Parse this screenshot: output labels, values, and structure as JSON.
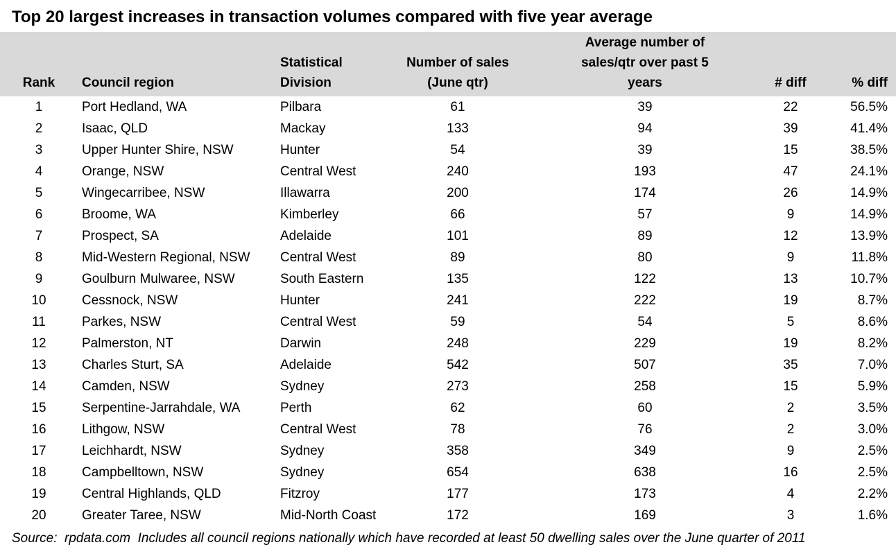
{
  "title": "Top 20 largest increases in transaction volumes compared with five year average",
  "colors": {
    "header_bg": "#d9d9d9",
    "text": "#000000",
    "background": "#ffffff"
  },
  "header": {
    "rank": "Rank",
    "council": "Council region",
    "statdiv_line1": "Statistical",
    "statdiv_line2": "Division",
    "sales_line1": "Number of sales",
    "sales_line2": "(June qtr)",
    "avg_line1": "Average number of",
    "avg_line2": "sales/qtr over past 5",
    "avg_line3": "years",
    "num_diff": "# diff",
    "pct_diff": "% diff"
  },
  "footer": {
    "source_note": "Source:  rpdata.com  Includes all council regions nationally which have recorded at least 50 dwelling sales over the June quarter of 2011"
  },
  "chart_data": {
    "type": "table",
    "title": "Top 20 largest increases in transaction volumes compared with five year average",
    "columns": [
      "Rank",
      "Council region",
      "Statistical Division",
      "Number of sales (June qtr)",
      "Average number of sales/qtr over past 5 years",
      "# diff",
      "% diff"
    ],
    "rows": [
      [
        "1",
        "Port Hedland, WA",
        "Pilbara",
        "61",
        "39",
        "22",
        "56.5%"
      ],
      [
        "2",
        "Isaac, QLD",
        "Mackay",
        "133",
        "94",
        "39",
        "41.4%"
      ],
      [
        "3",
        "Upper Hunter Shire, NSW",
        "Hunter",
        "54",
        "39",
        "15",
        "38.5%"
      ],
      [
        "4",
        "Orange, NSW",
        "Central West",
        "240",
        "193",
        "47",
        "24.1%"
      ],
      [
        "5",
        "Wingecarribee, NSW",
        "Illawarra",
        "200",
        "174",
        "26",
        "14.9%"
      ],
      [
        "6",
        "Broome, WA",
        "Kimberley",
        "66",
        "57",
        "9",
        "14.9%"
      ],
      [
        "7",
        "Prospect, SA",
        "Adelaide",
        "101",
        "89",
        "12",
        "13.9%"
      ],
      [
        "8",
        "Mid-Western Regional, NSW",
        "Central West",
        "89",
        "80",
        "9",
        "11.8%"
      ],
      [
        "9",
        "Goulburn Mulwaree, NSW",
        "South Eastern",
        "135",
        "122",
        "13",
        "10.7%"
      ],
      [
        "10",
        "Cessnock, NSW",
        "Hunter",
        "241",
        "222",
        "19",
        "8.7%"
      ],
      [
        "11",
        "Parkes, NSW",
        "Central West",
        "59",
        "54",
        "5",
        "8.6%"
      ],
      [
        "12",
        "Palmerston, NT",
        "Darwin",
        "248",
        "229",
        "19",
        "8.2%"
      ],
      [
        "13",
        "Charles Sturt, SA",
        "Adelaide",
        "542",
        "507",
        "35",
        "7.0%"
      ],
      [
        "14",
        "Camden, NSW",
        "Sydney",
        "273",
        "258",
        "15",
        "5.9%"
      ],
      [
        "15",
        "Serpentine-Jarrahdale, WA",
        "Perth",
        "62",
        "60",
        "2",
        "3.5%"
      ],
      [
        "16",
        "Lithgow, NSW",
        "Central West",
        "78",
        "76",
        "2",
        "3.0%"
      ],
      [
        "17",
        "Leichhardt, NSW",
        "Sydney",
        "358",
        "349",
        "9",
        "2.5%"
      ],
      [
        "18",
        "Campbelltown, NSW",
        "Sydney",
        "654",
        "638",
        "16",
        "2.5%"
      ],
      [
        "19",
        "Central Highlands, QLD",
        "Fitzroy",
        "177",
        "173",
        "4",
        "2.2%"
      ],
      [
        "20",
        "Greater Taree, NSW",
        "Mid-North Coast",
        "172",
        "169",
        "3",
        "1.6%"
      ]
    ],
    "source_note": "Source:  rpdata.com  Includes all council regions nationally which have recorded at least 50 dwelling sales over the June quarter of 2011"
  }
}
